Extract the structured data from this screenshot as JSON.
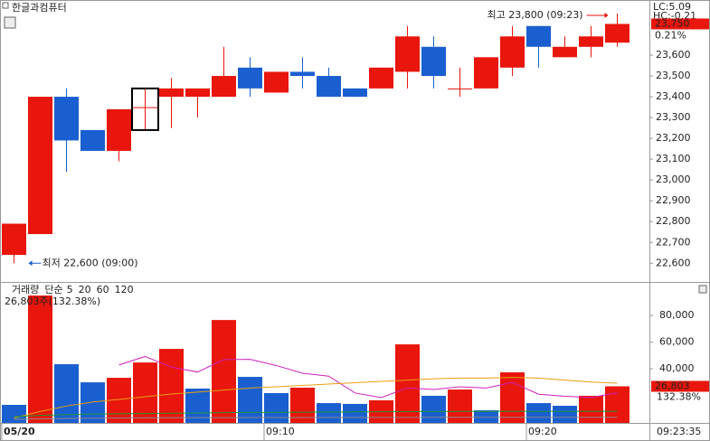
{
  "title": "한글과컴퓨터",
  "chart_data": [
    {
      "type": "candlestick",
      "categories": [
        "05/20",
        null,
        null,
        null,
        null,
        null,
        null,
        null,
        null,
        null,
        "09:10",
        null,
        null,
        null,
        null,
        null,
        null,
        null,
        null,
        null,
        "09:20",
        null,
        null,
        null
      ],
      "time_end": "09:23:35",
      "open": [
        22640,
        22740,
        23400,
        23240,
        23140,
        23350,
        23400,
        23400,
        23400,
        23540,
        23420,
        23520,
        23500,
        23440,
        23440,
        23520,
        23640,
        23440,
        23440,
        23540,
        23740,
        23590,
        23640,
        23660
      ],
      "high": [
        22790,
        23400,
        23440,
        23240,
        23340,
        23440,
        23490,
        23440,
        23640,
        23590,
        23520,
        23590,
        23540,
        23440,
        23540,
        23740,
        23690,
        23540,
        23590,
        23740,
        23740,
        23690,
        23740,
        23800
      ],
      "low": [
        22600,
        22740,
        23040,
        23140,
        23090,
        23240,
        23250,
        23300,
        23400,
        23400,
        23420,
        23440,
        23400,
        23400,
        23440,
        23440,
        23440,
        23400,
        23440,
        23500,
        23540,
        23590,
        23590,
        23640
      ],
      "close": [
        22790,
        23400,
        23190,
        23140,
        23340,
        23350,
        23440,
        23440,
        23500,
        23440,
        23520,
        23500,
        23400,
        23400,
        23540,
        23690,
        23500,
        23440,
        23590,
        23690,
        23640,
        23640,
        23690,
        23750
      ],
      "up_color": "#e8160c",
      "down_color": "#1a5fd0",
      "ylim": [
        22510,
        23865
      ],
      "yticks": [
        {
          "value": 22600,
          "label": "22,600"
        },
        {
          "value": 22700,
          "label": "22,700"
        },
        {
          "value": 22800,
          "label": "22,800"
        },
        {
          "value": 22900,
          "label": "22,900"
        },
        {
          "value": 23000,
          "label": "23,000"
        },
        {
          "value": 23100,
          "label": "23,100"
        },
        {
          "value": 23200,
          "label": "23,200"
        },
        {
          "value": 23300,
          "label": "23,300"
        },
        {
          "value": 23400,
          "label": "23,400"
        },
        {
          "value": 23500,
          "label": "23,500"
        },
        {
          "value": 23600,
          "label": "23,600"
        }
      ],
      "high_annotation": {
        "value": 23800,
        "label": "최고 23,800 (09:23)"
      },
      "low_annotation": {
        "value": 22600,
        "label": "최저 22,600 (09:00)"
      },
      "last_price": {
        "value": 23750,
        "label": "23,750"
      },
      "lc": "LC:5.09",
      "hc": "HC:-0.21",
      "change": "0.21%"
    },
    {
      "type": "bar",
      "legend_title": "거래량",
      "ma_prefix": "단순",
      "series": [
        {
          "name": "거래량",
          "values": [
            12900,
            95000,
            43400,
            29800,
            33200,
            44700,
            54900,
            25100,
            76600,
            33900,
            21700,
            25800,
            14200,
            13600,
            16300,
            58300,
            19700,
            24400,
            8800,
            37300,
            14200,
            12200,
            19700,
            26803
          ],
          "value_labels": [
            null,
            null,
            null,
            null,
            null,
            null,
            null,
            null,
            null,
            null,
            null,
            null,
            null,
            null,
            null,
            null,
            null,
            null,
            null,
            null,
            null,
            null,
            null,
            "26,803"
          ],
          "colors": [
            "#1a5fd0",
            "#e8160c",
            "#1a5fd0",
            "#1a5fd0",
            "#e8160c",
            "#e8160c",
            "#e8160c",
            "#1a5fd0",
            "#e8160c",
            "#1a5fd0",
            "#1a5fd0",
            "#e8160c",
            "#1a5fd0",
            "#1a5fd0",
            "#e8160c",
            "#e8160c",
            "#1a5fd0",
            "#e8160c",
            "#1a5fd0",
            "#e8160c",
            "#1a5fd0",
            "#1a5fd0",
            "#e8160c",
            "#e8160c"
          ]
        },
        {
          "name": "5",
          "type": "line",
          "color": "#d020c0",
          "values": [
            null,
            null,
            null,
            null,
            42860,
            49220,
            41200,
            37540,
            46900,
            47040,
            42440,
            36620,
            34440,
            21840,
            18320,
            25640,
            24420,
            26460,
            25500,
            29700,
            20880,
            19380,
            18440,
            22041
          ]
        },
        {
          "name": "20",
          "type": "line",
          "color": "#e8a010",
          "values": [
            3000,
            8000,
            12000,
            15000,
            17000,
            19000,
            21000,
            22500,
            24000,
            25500,
            26500,
            27500,
            28500,
            29500,
            30500,
            31500,
            32500,
            33000,
            33000,
            33500,
            33000,
            31500,
            30000,
            29200
          ]
        },
        {
          "name": "60",
          "type": "line",
          "color": "#1a9a30",
          "values": [
            4000,
            5000,
            5500,
            6000,
            6200,
            6400,
            6600,
            6800,
            7000,
            7200,
            7300,
            7400,
            7500,
            7600,
            7700,
            7800,
            7900,
            8000,
            8000,
            8100,
            8100,
            8100,
            8100,
            8100
          ]
        },
        {
          "name": "120",
          "type": "line",
          "color": "#8a8a8a",
          "values": [
            2000,
            2400,
            2700,
            2900,
            3000,
            3100,
            3200,
            3300,
            3300,
            3400,
            3400,
            3400,
            3500,
            3500,
            3500,
            3500,
            3600,
            3600,
            3600,
            3600,
            3600,
            3600,
            3600,
            3600
          ]
        }
      ],
      "volume_text": "26,803주(132.38%)",
      "ratio_label": "132.38%",
      "ylim": [
        0,
        95000
      ],
      "yticks": [
        {
          "value": 40000,
          "label": "40,000"
        },
        {
          "value": 60000,
          "label": "60,000"
        },
        {
          "value": 80000,
          "label": "80,000"
        }
      ]
    }
  ]
}
